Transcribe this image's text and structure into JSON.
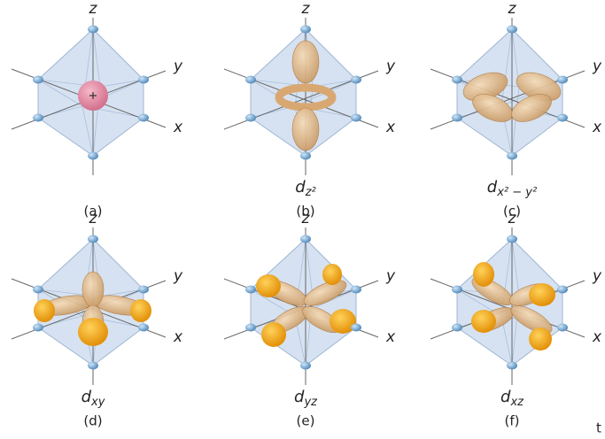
{
  "panels": [
    {
      "axes": {
        "z": "z",
        "y": "y",
        "x": "x"
      },
      "caption": "(a)"
    },
    {
      "axes": {
        "z": "z",
        "y": "y",
        "x": "x"
      },
      "orbital": {
        "symbol": "d",
        "subscript": "z²"
      },
      "caption": "(b)"
    },
    {
      "axes": {
        "z": "z",
        "y": "y",
        "x": "x"
      },
      "orbital": {
        "symbol": "d",
        "subscript": "x² − y²"
      },
      "caption": "(c)"
    },
    {
      "axes": {
        "z": "z",
        "y": "y",
        "x": "x"
      },
      "orbital": {
        "symbol": "d",
        "subscript": "xy"
      },
      "caption": "(d)"
    },
    {
      "axes": {
        "z": "z",
        "y": "y",
        "x": "x"
      },
      "orbital": {
        "symbol": "d",
        "subscript": "yz"
      },
      "caption": "(e)"
    },
    {
      "axes": {
        "z": "z",
        "y": "y",
        "x": "x"
      },
      "orbital": {
        "symbol": "d",
        "subscript": "xz"
      },
      "caption": "(f)"
    }
  ],
  "edge_text": "t"
}
